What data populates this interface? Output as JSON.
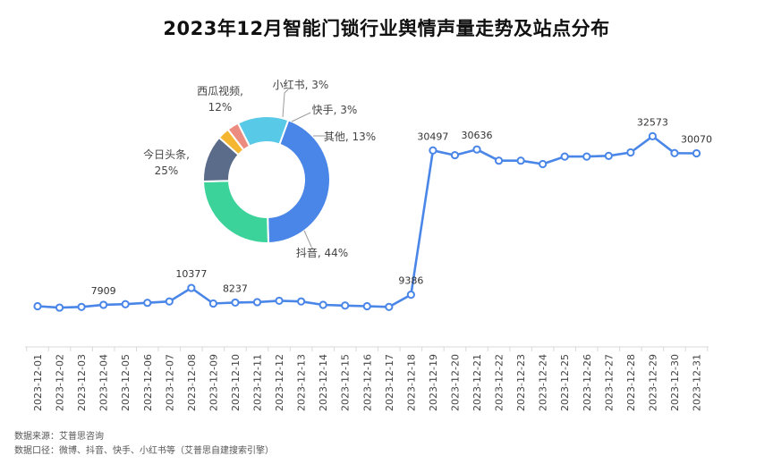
{
  "title": "2023年12月智能门锁行业舆情声量走势及站点分布",
  "footer": {
    "source": "数据来源：艾普思咨询",
    "note": "数据口径：微博、抖音、快手、小红书等（艾普思自建搜索引擎）"
  },
  "colors": {
    "line": "#4A86E8",
    "grid": "#d9d9d9"
  },
  "chart_data": [
    {
      "type": "line",
      "categories": [
        "2023-12-01",
        "2023-12-02",
        "2023-12-03",
        "2023-12-04",
        "2023-12-05",
        "2023-12-06",
        "2023-12-07",
        "2023-12-08",
        "2023-12-09",
        "2023-12-10",
        "2023-12-11",
        "2023-12-12",
        "2023-12-13",
        "2023-12-14",
        "2023-12-15",
        "2023-12-16",
        "2023-12-17",
        "2023-12-18",
        "2023-12-19",
        "2023-12-20",
        "2023-12-21",
        "2023-12-22",
        "2023-12-23",
        "2023-12-24",
        "2023-12-25",
        "2023-12-26",
        "2023-12-27",
        "2023-12-28",
        "2023-12-29",
        "2023-12-30",
        "2023-12-31"
      ],
      "values": [
        7700,
        7500,
        7600,
        7909,
        8000,
        8200,
        8400,
        10377,
        8100,
        8237,
        8300,
        8500,
        8400,
        7900,
        7800,
        7700,
        7600,
        9386,
        30497,
        29800,
        30636,
        29000,
        29000,
        28500,
        29600,
        29600,
        29700,
        30200,
        32573,
        30100,
        30070
      ],
      "data_labels": {
        "3": "7909",
        "7": "10377",
        "9": "8237",
        "17": "9386",
        "18": "30497",
        "20": "30636",
        "28": "32573",
        "30": "30070"
      },
      "ylim": [
        0,
        40000
      ],
      "xlabel": "",
      "ylabel": "",
      "grid": false,
      "legend": "none"
    },
    {
      "type": "pie",
      "style": "donut",
      "slices": [
        {
          "label": "抖音, 44%",
          "value": 44,
          "color": "#4A86E8"
        },
        {
          "label": "今日头条, 25%",
          "value": 25,
          "color": "#3CD39B"
        },
        {
          "label": "西瓜视频, 12%",
          "value": 12,
          "color": "#5B6B8A"
        },
        {
          "label": "小红书, 3%",
          "value": 3,
          "color": "#F5B731"
        },
        {
          "label": "快手, 3%",
          "value": 3,
          "color": "#EC8C80"
        },
        {
          "label": "其他, 13%",
          "value": 13,
          "color": "#59C9E8"
        }
      ]
    }
  ]
}
